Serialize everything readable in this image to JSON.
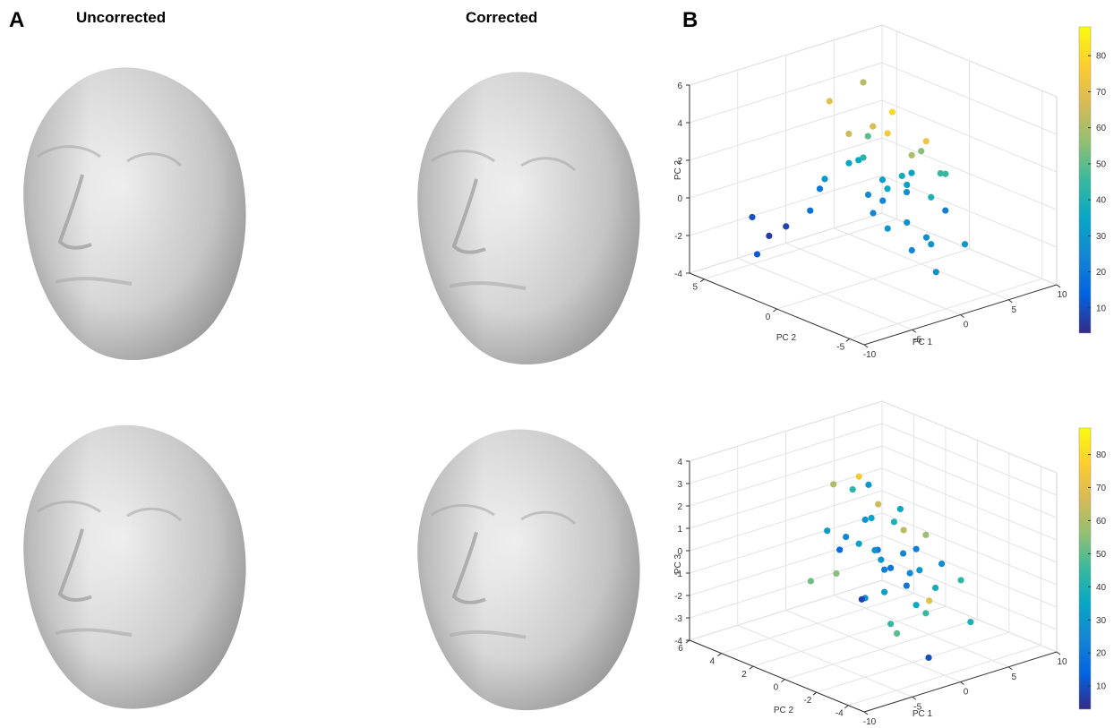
{
  "figure": {
    "panel_a": "A",
    "uncorrected": "Uncorrected",
    "corrected": "Corrected",
    "panel_b": "B"
  },
  "chart_data": [
    {
      "type": "scatter3d",
      "xlabel": "PC 1",
      "ylabel": "PC 2",
      "zlabel": "PC 3",
      "x": [
        -2,
        0,
        1,
        2,
        3,
        4,
        5,
        -1,
        0.5,
        1.5,
        2.5,
        3.5,
        4.5,
        -3,
        -4,
        -5,
        -6,
        0,
        1,
        2,
        3,
        4,
        6,
        7,
        -1,
        0,
        2,
        3,
        5,
        1,
        2,
        3,
        4,
        0,
        -2,
        1,
        3,
        2,
        4,
        5
      ],
      "y": [
        2,
        1,
        0,
        -1,
        -2,
        0,
        1,
        3,
        2,
        0,
        -1,
        1,
        -2,
        4,
        4.5,
        5,
        4,
        -1,
        -2,
        -3,
        0,
        2,
        -1,
        0,
        1,
        3,
        2,
        -2,
        0,
        1,
        -1,
        2,
        3,
        0,
        3,
        -3,
        1,
        2,
        -1,
        -3
      ],
      "z": [
        1,
        2,
        0,
        -1,
        0.5,
        1,
        -0.5,
        0,
        3,
        3.5,
        2.5,
        4,
        1.5,
        -2,
        -2.5,
        -1.5,
        -3,
        -1,
        -2,
        -3,
        1,
        0,
        -1,
        0.5,
        2,
        4.5,
        5.5,
        -2,
        2,
        0,
        1,
        3,
        2,
        -0.5,
        -1,
        -1,
        0,
        1.5,
        3,
        -2
      ],
      "c": [
        30,
        35,
        25,
        28,
        40,
        33,
        27,
        20,
        65,
        75,
        60,
        80,
        45,
        8,
        6,
        10,
        12,
        30,
        25,
        28,
        38,
        32,
        22,
        45,
        35,
        70,
        62,
        30,
        55,
        26,
        32,
        68,
        50,
        24,
        18,
        27,
        36,
        42,
        72,
        30
      ],
      "xlim": [
        -10,
        10
      ],
      "xticks": [
        -10,
        -5,
        0,
        5,
        10
      ],
      "ylim": [
        -6,
        6
      ],
      "yticks": [
        -5,
        0,
        5
      ],
      "zlim": [
        -4,
        6
      ],
      "zticks": [
        -4,
        -2,
        0,
        2,
        4,
        6
      ],
      "clim": [
        3,
        88
      ],
      "cticks": [
        10,
        20,
        30,
        40,
        50,
        60,
        70,
        80
      ],
      "colormap": [
        "#352a87",
        "#0363e1",
        "#1485d4",
        "#06a7c6",
        "#38b99e",
        "#92bf73",
        "#d9ba56",
        "#fcce2e",
        "#f9fb0e"
      ],
      "grid": true
    },
    {
      "type": "scatter3d",
      "xlabel": "PC 1",
      "ylabel": "PC 2",
      "zlabel": "PC 3",
      "x": [
        -2,
        0,
        1,
        2,
        3,
        -1,
        0,
        1,
        2,
        3,
        4,
        -3,
        -2,
        0,
        1,
        2,
        3,
        4,
        5,
        -1,
        0,
        1,
        2,
        3,
        -2,
        0,
        2,
        4,
        1,
        3,
        2,
        -4,
        6,
        0,
        1,
        -1,
        2,
        3,
        1,
        5
      ],
      "y": [
        1,
        0,
        -1,
        0,
        1,
        2,
        1,
        0,
        -1,
        2,
        0,
        1,
        -1,
        3,
        2,
        1,
        -2,
        -1,
        0,
        -2,
        -1,
        2,
        3,
        0,
        0,
        1,
        -1,
        1,
        0,
        -1,
        2,
        2,
        -2,
        -3,
        1,
        0,
        1,
        -1,
        4,
        -2
      ],
      "z": [
        1,
        0,
        -1,
        2,
        1,
        0,
        -2,
        -3,
        0.5,
        1.5,
        -1,
        -0.5,
        1,
        2.5,
        3,
        -2,
        0,
        -1.5,
        -2.5,
        1,
        -3,
        0,
        2,
        -1,
        -1.5,
        1.5,
        -2,
        0.5,
        -0.5,
        -2.5,
        2.5,
        -1,
        -3,
        -3.5,
        0,
        2,
        -1,
        1,
        0,
        -1
      ],
      "c": [
        25,
        30,
        20,
        35,
        40,
        15,
        28,
        45,
        22,
        65,
        30,
        55,
        18,
        60,
        75,
        32,
        27,
        38,
        70,
        24,
        50,
        33,
        42,
        26,
        8,
        29,
        36,
        62,
        20,
        45,
        30,
        52,
        40,
        10,
        28,
        34,
        22,
        58,
        31,
        44
      ],
      "xlim": [
        -10,
        10
      ],
      "xticks": [
        -10,
        -5,
        0,
        5,
        10
      ],
      "ylim": [
        -5,
        6
      ],
      "yticks": [
        -4,
        -2,
        0,
        2,
        4,
        6
      ],
      "zlim": [
        -4,
        4
      ],
      "zticks": [
        -4,
        -3,
        -2,
        -1,
        0,
        1,
        2,
        3,
        4
      ],
      "clim": [
        3,
        88
      ],
      "cticks": [
        10,
        20,
        30,
        40,
        50,
        60,
        70,
        80
      ],
      "colormap": [
        "#352a87",
        "#0363e1",
        "#1485d4",
        "#06a7c6",
        "#38b99e",
        "#92bf73",
        "#d9ba56",
        "#fcce2e",
        "#f9fb0e"
      ],
      "grid": true
    }
  ]
}
